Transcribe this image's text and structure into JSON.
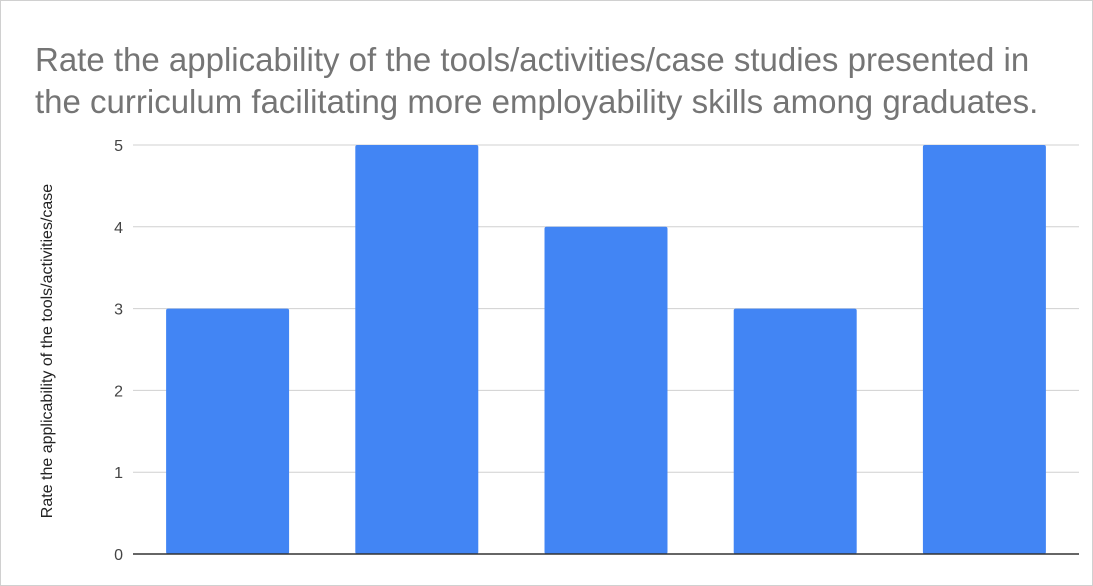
{
  "chart_data": {
    "type": "bar",
    "title": "Rate the applicability of the tools/activities/case studies presented in the curriculum facilitating more employability skills among graduates.",
    "xlabel": "",
    "ylabel": "Rate the applicability of the tools/activities/case",
    "categories": [
      "",
      "",
      "",
      "",
      ""
    ],
    "values": [
      3,
      5,
      4,
      3,
      5
    ],
    "ylim": [
      0,
      5
    ],
    "yticks": [
      "0",
      "1",
      "2",
      "3",
      "4",
      "5"
    ],
    "grid": true,
    "legend": "none",
    "colors": {
      "bar": "#4285f4",
      "grid": "#d0d0d0",
      "axis": "#333333"
    }
  }
}
